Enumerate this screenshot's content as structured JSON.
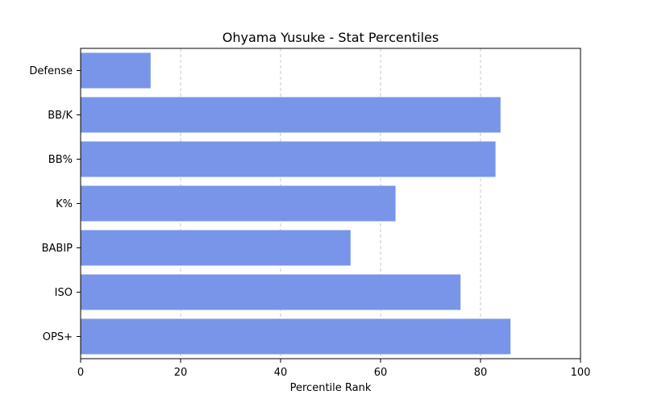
{
  "chart_data": {
    "type": "bar",
    "orientation": "horizontal",
    "title": "Ohyama Yusuke - Stat Percentiles",
    "xlabel": "Percentile Rank",
    "ylabel": "",
    "xlim": [
      0,
      100
    ],
    "xticks": [
      0,
      20,
      40,
      60,
      80,
      100
    ],
    "categories": [
      "Defense",
      "BB/K",
      "BB%",
      "K%",
      "BABIP",
      "ISO",
      "OPS+"
    ],
    "values": [
      14,
      84,
      83,
      63,
      54,
      76,
      86
    ],
    "bar_color": "#7895ea",
    "grid": "vertical dashed",
    "legend": "none"
  }
}
